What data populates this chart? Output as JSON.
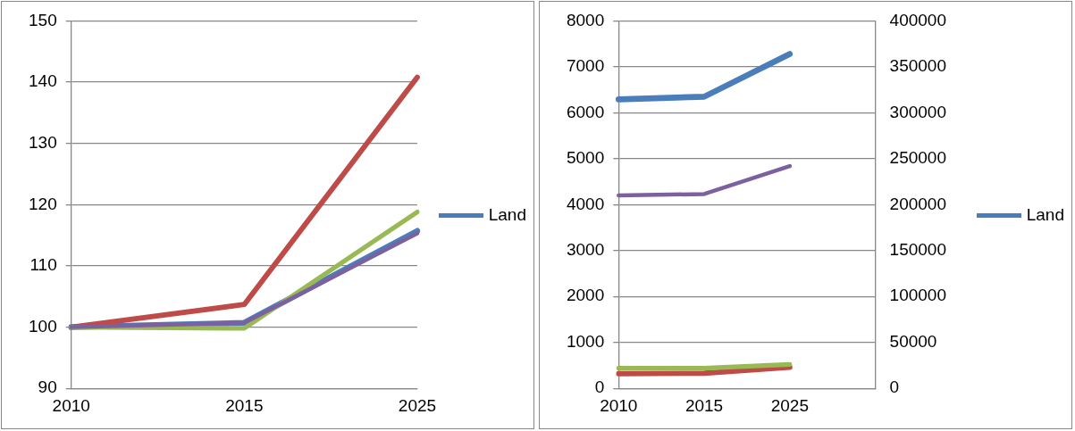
{
  "chart_data": [
    {
      "type": "line",
      "categories": [
        "2010",
        "2015",
        "2025"
      ],
      "ylim": [
        90,
        150
      ],
      "yticks": [
        90,
        100,
        110,
        120,
        130,
        140,
        150
      ],
      "grid": "y",
      "legend": "right",
      "marker": "none",
      "line_style": "solid",
      "series": [
        {
          "name": "Land",
          "color": "#4a7ebb",
          "values": [
            100,
            100.7,
            115.7
          ]
        },
        {
          "color": "#be4b48",
          "values": [
            100,
            103.7,
            140.8
          ]
        },
        {
          "color": "#98b954",
          "values": [
            100,
            99.8,
            118.8
          ]
        },
        {
          "color": "#7d60a0",
          "values": [
            100,
            100.7,
            115.3
          ]
        }
      ]
    },
    {
      "type": "line",
      "categories": [
        "2010",
        "2015",
        "2025",
        null
      ],
      "ylim": [
        0,
        8000
      ],
      "yticks": [
        0,
        1000,
        2000,
        3000,
        4000,
        5000,
        6000,
        7000,
        8000
      ],
      "y2lim": [
        0,
        400000
      ],
      "y2ticks": [
        0,
        50000,
        100000,
        150000,
        200000,
        250000,
        300000,
        350000,
        400000
      ],
      "grid": "y",
      "legend": "right",
      "marker": "none",
      "line_style": "solid",
      "series": [
        {
          "name": "Land",
          "color": "#4a7ebb",
          "values": [
            6290,
            6350,
            7280,
            null
          ]
        },
        {
          "color": "#be4b48",
          "values": [
            320,
            330,
            460,
            null
          ]
        },
        {
          "color": "#98b954",
          "values": [
            440,
            440,
            520,
            null
          ]
        },
        {
          "color": "#7d60a0",
          "values": [
            4200,
            4230,
            4840,
            null
          ]
        }
      ]
    }
  ]
}
